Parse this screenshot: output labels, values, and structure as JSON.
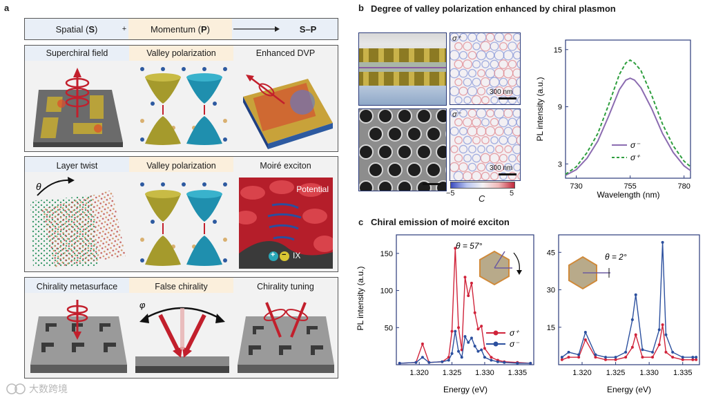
{
  "panel_a": {
    "label": "a",
    "header": {
      "spatial": "Spatial (",
      "spatial_bold": "S",
      "spatial_close": ")",
      "plus": "+",
      "momentum": "Momentum (",
      "momentum_bold": "P",
      "momentum_close": ")",
      "result": "S–P"
    },
    "row1": [
      "Superchiral field",
      "Valley polarization",
      "Enhanced DVP"
    ],
    "row2": [
      "Layer twist",
      "Valley polarization",
      "Moiré exciton"
    ],
    "row2_symbols": {
      "theta": "θ",
      "potential": "Potential",
      "ix": "IX",
      "plus": "+",
      "minus": "−"
    },
    "row3": [
      "Chirality metasurface",
      "False chirality",
      "Chirality tuning"
    ],
    "row3_symbols": {
      "phi": "φ"
    }
  },
  "panel_b": {
    "label": "b",
    "title": "Degree of valley polarization enhanced by chiral plasmon",
    "map_top_label": "σ⁺",
    "map_bottom_label": "σ⁻",
    "scalebar": "300 nm",
    "colorbar": {
      "min": "−5",
      "max": "5",
      "label": "C"
    }
  },
  "panel_c": {
    "label": "c",
    "title": "Chiral emission of moiré exciton",
    "left_angle": "θ = 57°",
    "right_angle": "θ = 2°"
  },
  "watermark": "大数跨境",
  "colors": {
    "sigma_minus": "#8b6bb0",
    "sigma_plus": "#2e9e3e",
    "c_red": "#d0233a",
    "c_blue": "#2b4f9e"
  },
  "chart_data": [
    {
      "type": "line",
      "xlabel": "Wavelength (nm)",
      "ylabel": "PL intensity (a.u.)",
      "xlim": [
        725,
        783
      ],
      "ylim": [
        1.5,
        16
      ],
      "xticks": [
        "730",
        "755",
        "780"
      ],
      "yticks": [
        "3",
        "9",
        "15"
      ],
      "legend_position": "bottom-right",
      "x": [
        725,
        730,
        735,
        740,
        745,
        750,
        753,
        755,
        757,
        760,
        765,
        770,
        775,
        780,
        783
      ],
      "series": [
        {
          "name": "σ⁻",
          "style": "solid",
          "values": [
            1.8,
            2.4,
            3.6,
            5.4,
            8.0,
            10.8,
            11.8,
            12.0,
            11.8,
            11.0,
            8.8,
            6.2,
            4.2,
            2.8,
            2.3
          ]
        },
        {
          "name": "σ⁺",
          "style": "dashed",
          "values": [
            1.9,
            2.7,
            4.2,
            6.2,
            9.2,
            12.4,
            13.6,
            13.9,
            13.6,
            12.8,
            10.2,
            7.2,
            4.9,
            3.3,
            2.7
          ]
        }
      ]
    },
    {
      "type": "line",
      "xlabel": "Energy (eV)",
      "ylabel": "PL intensity (a.u.)",
      "xlim": [
        1.3165,
        1.3375
      ],
      "ylim": [
        0,
        175
      ],
      "xticks": [
        "1.320",
        "1.325",
        "1.330",
        "1.335"
      ],
      "yticks": [
        "50",
        "100",
        "150"
      ],
      "legend_position": "bottom-right",
      "x": [
        1.317,
        1.3195,
        1.3205,
        1.3215,
        1.3235,
        1.3245,
        1.325,
        1.3255,
        1.326,
        1.3265,
        1.327,
        1.3275,
        1.328,
        1.3285,
        1.329,
        1.3295,
        1.33,
        1.331,
        1.332,
        1.333,
        1.335,
        1.337
      ],
      "series": [
        {
          "name": "σ⁺",
          "values": [
            2,
            3,
            28,
            3,
            4,
            10,
            45,
            157,
            50,
            20,
            118,
            93,
            110,
            70,
            48,
            52,
            22,
            10,
            6,
            4,
            3,
            2
          ]
        },
        {
          "name": "σ⁻",
          "values": [
            2,
            3,
            10,
            3,
            4,
            6,
            15,
            45,
            18,
            10,
            38,
            30,
            36,
            25,
            18,
            20,
            10,
            6,
            4,
            3,
            2,
            2
          ]
        }
      ]
    },
    {
      "type": "line",
      "xlabel": "Energy (eV)",
      "ylabel": "",
      "xlim": [
        1.3165,
        1.3375
      ],
      "ylim": [
        0,
        52
      ],
      "xticks": [
        "1.320",
        "1.325",
        "1.330",
        "1.335"
      ],
      "yticks": [
        "15",
        "30",
        "45"
      ],
      "x": [
        1.317,
        1.318,
        1.3195,
        1.3205,
        1.322,
        1.3235,
        1.325,
        1.3265,
        1.3275,
        1.328,
        1.329,
        1.3305,
        1.3315,
        1.332,
        1.3325,
        1.3335,
        1.335,
        1.3365,
        1.337
      ],
      "series": [
        {
          "name": "σ⁺",
          "values": [
            2,
            3,
            3,
            10,
            3,
            2,
            2,
            3,
            7,
            12,
            3,
            3,
            8,
            16,
            5,
            3,
            2,
            2,
            2
          ]
        },
        {
          "name": "σ⁻",
          "values": [
            3,
            5,
            4,
            13,
            4,
            3,
            3,
            5,
            18,
            28,
            6,
            5,
            14,
            49,
            12,
            5,
            3,
            3,
            3
          ]
        }
      ]
    }
  ]
}
